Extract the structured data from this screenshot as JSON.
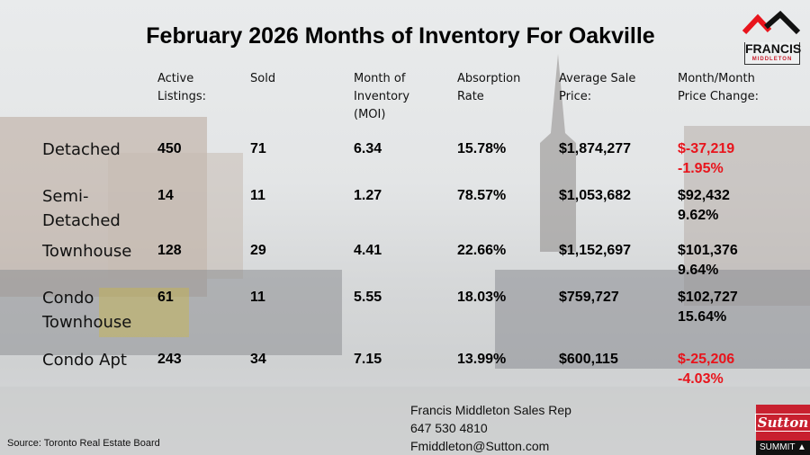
{
  "title": "February 2026 Months of Inventory For Oakville",
  "headers": [
    [
      "Active",
      "Listings:"
    ],
    [
      "Sold"
    ],
    [
      "Month of",
      "Inventory",
      "(MOI)"
    ],
    [
      "Absorption",
      "Rate"
    ],
    [
      "Average Sale",
      "Price:"
    ],
    [
      "Month/Month",
      "Price Change:"
    ]
  ],
  "rows": [
    {
      "label": [
        "Detached"
      ],
      "active": "450",
      "sold": "71",
      "moi": "6.34",
      "absorption": "15.78%",
      "avg_price": "$1,874,277",
      "change_amount": "$-37,219",
      "change_pct": "-1.95%",
      "negative": true
    },
    {
      "label": [
        "Semi-",
        "Detached"
      ],
      "active": "14",
      "sold": "11",
      "moi": "1.27",
      "absorption": "78.57%",
      "avg_price": "$1,053,682",
      "change_amount": "$92,432",
      "change_pct": "9.62%",
      "negative": false
    },
    {
      "label": [
        "Townhouse"
      ],
      "active": "128",
      "sold": "29",
      "moi": "4.41",
      "absorption": "22.66%",
      "avg_price": "$1,152,697",
      "change_amount": "$101,376",
      "change_pct": "9.64%",
      "negative": false
    },
    {
      "label": [
        "Condo",
        "Townhouse"
      ],
      "active": "61",
      "sold": "11",
      "moi": "5.55",
      "absorption": "18.03%",
      "avg_price": "$759,727",
      "change_amount": "$102,727",
      "change_pct": "15.64%",
      "negative": false
    },
    {
      "label": [
        "Condo Apt"
      ],
      "active": "243",
      "sold": "34",
      "moi": "7.15",
      "absorption": "13.99%",
      "avg_price": "$600,115",
      "change_amount": "$-25,206",
      "change_pct": "-4.03%",
      "negative": true
    }
  ],
  "contact": {
    "name": "Francis Middleton Sales Rep",
    "phone": "647 530 4810",
    "email": "Fmiddleton@Sutton.com"
  },
  "source": "Source: Toronto Real Estate Board",
  "logo_top": {
    "line1": "FRANCIS",
    "line2": "MIDDLETON"
  },
  "logo_bottom": {
    "line1": "Sutton",
    "line2": "SUMMIT"
  },
  "colors": {
    "negative": "#e8141c",
    "brand_red": "#c8202f"
  }
}
